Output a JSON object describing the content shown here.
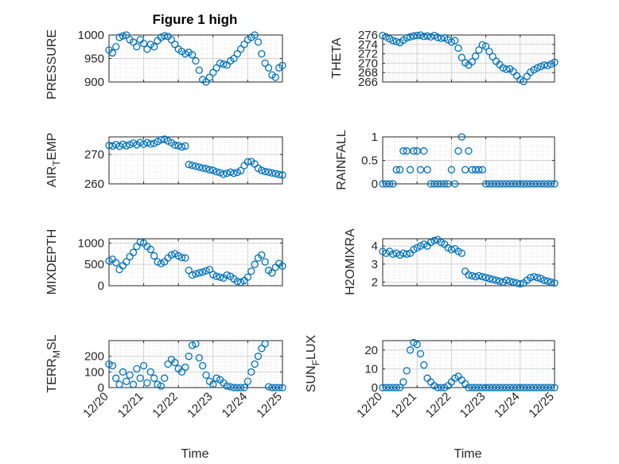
{
  "figure_title": "Figure 1 high",
  "chart_data": [
    {
      "type": "scatter",
      "title": "Figure 1 high",
      "ylabel": "PRESSURE",
      "ylim": [
        900,
        1000
      ],
      "yticks": [
        900,
        950,
        1000
      ],
      "xlim": [
        0,
        5
      ],
      "grid": true,
      "x": [
        0.0,
        0.1,
        0.2,
        0.3,
        0.4,
        0.5,
        0.6,
        0.7,
        0.8,
        0.9,
        1.0,
        1.1,
        1.2,
        1.3,
        1.4,
        1.5,
        1.6,
        1.7,
        1.8,
        1.9,
        2.0,
        2.1,
        2.2,
        2.3,
        2.4,
        2.5,
        2.6,
        2.7,
        2.8,
        2.9,
        3.0,
        3.1,
        3.2,
        3.3,
        3.4,
        3.5,
        3.6,
        3.7,
        3.8,
        3.9,
        4.0,
        4.1,
        4.2,
        4.3,
        4.4,
        4.5,
        4.6,
        4.7,
        4.8,
        4.9,
        5.0
      ],
      "y": [
        968,
        962,
        975,
        995,
        998,
        1000,
        990,
        985,
        975,
        990,
        982,
        970,
        980,
        975,
        988,
        995,
        998,
        997,
        990,
        980,
        970,
        965,
        960,
        963,
        958,
        945,
        925,
        905,
        900,
        910,
        920,
        930,
        940,
        938,
        936,
        945,
        950,
        960,
        970,
        980,
        990,
        995,
        1000,
        985,
        960,
        940,
        930,
        915,
        910,
        930,
        935
      ]
    },
    {
      "type": "scatter",
      "ylabel": "THETA",
      "ylim": [
        266,
        276
      ],
      "yticks": [
        266,
        268,
        270,
        272,
        274,
        276
      ],
      "xlim": [
        0,
        5
      ],
      "grid": true,
      "x": [
        0.0,
        0.1,
        0.2,
        0.3,
        0.4,
        0.5,
        0.6,
        0.7,
        0.8,
        0.9,
        1.0,
        1.1,
        1.2,
        1.3,
        1.4,
        1.5,
        1.6,
        1.7,
        1.8,
        1.9,
        2.0,
        2.1,
        2.2,
        2.3,
        2.4,
        2.5,
        2.6,
        2.7,
        2.8,
        2.9,
        3.0,
        3.1,
        3.2,
        3.3,
        3.4,
        3.5,
        3.6,
        3.7,
        3.8,
        3.9,
        4.0,
        4.1,
        4.2,
        4.3,
        4.4,
        4.5,
        4.6,
        4.7,
        4.8,
        4.9,
        5.0
      ],
      "y": [
        275.9,
        275.6,
        275.2,
        274.8,
        274.6,
        274.4,
        274.9,
        275.4,
        275.6,
        275.8,
        275.9,
        276.0,
        275.7,
        275.8,
        275.6,
        275.9,
        275.5,
        275.3,
        275.4,
        275.0,
        274.5,
        274.8,
        273.2,
        271.2,
        270.1,
        269.6,
        270.3,
        271.5,
        272.8,
        273.9,
        273.6,
        272.5,
        271.4,
        270.4,
        269.7,
        269.0,
        268.7,
        268.8,
        268.2,
        267.3,
        266.5,
        266.1,
        267.2,
        268.1,
        268.6,
        269.0,
        269.3,
        269.6,
        269.5,
        269.8,
        270.2
      ]
    },
    {
      "type": "scatter",
      "ylabel": "AIR_TEMP",
      "ylim": [
        260,
        276
      ],
      "yticks": [
        260,
        270
      ],
      "xlim": [
        0,
        5
      ],
      "grid": true,
      "x": [
        0.0,
        0.1,
        0.2,
        0.3,
        0.4,
        0.5,
        0.6,
        0.7,
        0.8,
        0.9,
        1.0,
        1.1,
        1.2,
        1.3,
        1.4,
        1.5,
        1.6,
        1.7,
        1.8,
        1.9,
        2.0,
        2.1,
        2.2,
        2.3,
        2.4,
        2.5,
        2.6,
        2.7,
        2.8,
        2.9,
        3.0,
        3.1,
        3.2,
        3.3,
        3.4,
        3.5,
        3.6,
        3.7,
        3.8,
        3.9,
        4.0,
        4.1,
        4.2,
        4.3,
        4.4,
        4.5,
        4.6,
        4.7,
        4.8,
        4.9,
        5.0
      ],
      "y": [
        273.1,
        272.9,
        273.4,
        272.8,
        273.5,
        273.0,
        273.4,
        273.9,
        273.3,
        274.1,
        273.5,
        274.0,
        273.6,
        273.8,
        274.4,
        275.0,
        275.2,
        274.6,
        274.0,
        273.2,
        273.0,
        272.6,
        272.9,
        266.6,
        266.3,
        266.0,
        265.7,
        265.4,
        265.2,
        264.8,
        264.6,
        264.1,
        263.8,
        263.3,
        263.6,
        264.0,
        263.6,
        263.9,
        264.5,
        266.2,
        267.5,
        267.6,
        266.8,
        265.3,
        264.6,
        264.2,
        264.0,
        263.7,
        263.5,
        263.2,
        263.0
      ]
    },
    {
      "type": "scatter",
      "ylabel": "RAINFALL",
      "ylim": [
        0,
        1
      ],
      "yticks": [
        0,
        0.5,
        1
      ],
      "xlim": [
        0,
        5
      ],
      "grid": true,
      "x": [
        0.0,
        0.1,
        0.2,
        0.3,
        0.4,
        0.5,
        0.6,
        0.7,
        0.8,
        0.9,
        1.0,
        1.1,
        1.2,
        1.3,
        1.4,
        1.5,
        1.6,
        1.7,
        1.8,
        1.9,
        2.0,
        2.1,
        2.2,
        2.3,
        2.4,
        2.5,
        2.6,
        2.7,
        2.8,
        2.9,
        3.0,
        3.1,
        3.2,
        3.3,
        3.4,
        3.5,
        3.6,
        3.7,
        3.8,
        3.9,
        4.0,
        4.1,
        4.2,
        4.3,
        4.4,
        4.5,
        4.6,
        4.7,
        4.8,
        4.9,
        5.0
      ],
      "y": [
        0,
        0,
        0,
        0,
        0.3,
        0.3,
        0.7,
        0.7,
        0.3,
        0.7,
        0.7,
        0.3,
        0.7,
        0.3,
        0,
        0,
        0,
        0,
        0,
        0,
        0.3,
        0,
        0.7,
        1.0,
        0.3,
        0.7,
        0.3,
        0.3,
        0.3,
        0.3,
        0,
        0,
        0,
        0,
        0,
        0,
        0,
        0,
        0,
        0,
        0,
        0,
        0,
        0,
        0,
        0,
        0,
        0,
        0,
        0,
        0
      ]
    },
    {
      "type": "scatter",
      "ylabel": "MIXDEPTH",
      "ylim": [
        0,
        1100
      ],
      "yticks": [
        0,
        500,
        1000
      ],
      "xlim": [
        0,
        5
      ],
      "grid": true,
      "x": [
        0.0,
        0.1,
        0.2,
        0.3,
        0.4,
        0.5,
        0.6,
        0.7,
        0.8,
        0.9,
        1.0,
        1.1,
        1.2,
        1.3,
        1.4,
        1.5,
        1.6,
        1.7,
        1.8,
        1.9,
        2.0,
        2.1,
        2.2,
        2.3,
        2.4,
        2.5,
        2.6,
        2.7,
        2.8,
        2.9,
        3.0,
        3.1,
        3.2,
        3.3,
        3.4,
        3.5,
        3.6,
        3.7,
        3.8,
        3.9,
        4.0,
        4.1,
        4.2,
        4.3,
        4.4,
        4.5,
        4.6,
        4.7,
        4.8,
        4.9,
        5.0
      ],
      "y": [
        580,
        620,
        540,
        380,
        470,
        560,
        680,
        780,
        920,
        1020,
        1000,
        920,
        850,
        700,
        560,
        520,
        560,
        650,
        720,
        750,
        700,
        660,
        650,
        360,
        250,
        280,
        300,
        320,
        350,
        380,
        260,
        220,
        200,
        180,
        250,
        220,
        160,
        100,
        80,
        120,
        200,
        340,
        500,
        650,
        720,
        560,
        360,
        300,
        430,
        520,
        460
      ]
    },
    {
      "type": "scatter",
      "ylabel": "H2OMIXRA",
      "ylim": [
        1.8,
        4.4
      ],
      "yticks": [
        2,
        3,
        4
      ],
      "xlim": [
        0,
        5
      ],
      "grid": true,
      "x": [
        0.0,
        0.1,
        0.2,
        0.3,
        0.4,
        0.5,
        0.6,
        0.7,
        0.8,
        0.9,
        1.0,
        1.1,
        1.2,
        1.3,
        1.4,
        1.5,
        1.6,
        1.7,
        1.8,
        1.9,
        2.0,
        2.1,
        2.2,
        2.3,
        2.4,
        2.5,
        2.6,
        2.7,
        2.8,
        2.9,
        3.0,
        3.1,
        3.2,
        3.3,
        3.4,
        3.5,
        3.6,
        3.7,
        3.8,
        3.9,
        4.0,
        4.1,
        4.2,
        4.3,
        4.4,
        4.5,
        4.6,
        4.7,
        4.8,
        4.9,
        5.0
      ],
      "y": [
        3.7,
        3.6,
        3.7,
        3.55,
        3.6,
        3.5,
        3.6,
        3.55,
        3.6,
        3.8,
        3.9,
        4.0,
        4.1,
        4.0,
        4.2,
        4.3,
        4.35,
        4.2,
        4.1,
        3.9,
        3.8,
        3.85,
        3.7,
        3.6,
        2.6,
        2.4,
        2.35,
        2.3,
        2.35,
        2.3,
        2.25,
        2.2,
        2.15,
        2.1,
        2.05,
        2.0,
        2.1,
        2.05,
        2.0,
        1.95,
        1.9,
        1.95,
        2.1,
        2.25,
        2.3,
        2.25,
        2.2,
        2.1,
        2.05,
        2.0,
        1.95
      ]
    },
    {
      "type": "scatter",
      "ylabel": "TERR_MSL",
      "ylim": [
        0,
        300
      ],
      "yticks": [
        0,
        100,
        200
      ],
      "xlim": [
        0,
        5
      ],
      "grid": true,
      "x": [
        0.0,
        0.1,
        0.2,
        0.3,
        0.4,
        0.5,
        0.6,
        0.7,
        0.8,
        0.9,
        1.0,
        1.1,
        1.2,
        1.3,
        1.4,
        1.5,
        1.6,
        1.7,
        1.8,
        1.9,
        2.0,
        2.1,
        2.2,
        2.3,
        2.4,
        2.5,
        2.6,
        2.7,
        2.8,
        2.9,
        3.0,
        3.1,
        3.2,
        3.3,
        3.4,
        3.5,
        3.6,
        3.7,
        3.8,
        3.9,
        4.0,
        4.1,
        4.2,
        4.3,
        4.4,
        4.5,
        4.6,
        4.7,
        4.8,
        4.9,
        5.0
      ],
      "y": [
        150,
        140,
        60,
        20,
        100,
        40,
        80,
        20,
        120,
        60,
        140,
        30,
        100,
        60,
        20,
        10,
        60,
        150,
        180,
        160,
        120,
        100,
        130,
        200,
        270,
        280,
        190,
        140,
        80,
        40,
        20,
        60,
        50,
        30,
        10,
        5,
        0,
        0,
        0,
        0,
        40,
        100,
        150,
        200,
        250,
        280,
        5,
        0,
        0,
        0,
        0
      ]
    },
    {
      "type": "scatter",
      "ylabel": "SUN_FLUX",
      "ylim": [
        0,
        25
      ],
      "yticks": [
        0,
        10,
        20
      ],
      "xlim": [
        0,
        5
      ],
      "grid": true,
      "x": [
        0.0,
        0.1,
        0.2,
        0.3,
        0.4,
        0.5,
        0.6,
        0.7,
        0.8,
        0.9,
        1.0,
        1.1,
        1.2,
        1.3,
        1.4,
        1.5,
        1.6,
        1.7,
        1.8,
        1.9,
        2.0,
        2.1,
        2.2,
        2.3,
        2.4,
        2.5,
        2.6,
        2.7,
        2.8,
        2.9,
        3.0,
        3.1,
        3.2,
        3.3,
        3.4,
        3.5,
        3.6,
        3.7,
        3.8,
        3.9,
        4.0,
        4.1,
        4.2,
        4.3,
        4.4,
        4.5,
        4.6,
        4.7,
        4.8,
        4.9,
        5.0
      ],
      "y": [
        0,
        0,
        0,
        0,
        0,
        0,
        3,
        9,
        20,
        24,
        23,
        18,
        12,
        5,
        3,
        1,
        0,
        0,
        0,
        1,
        3,
        5,
        6,
        4,
        2,
        0,
        0,
        0,
        0,
        0,
        0,
        0,
        0,
        0,
        0,
        0,
        0,
        0,
        0,
        0,
        0,
        0,
        0,
        0,
        0,
        0,
        0,
        0,
        0,
        0,
        0
      ]
    }
  ],
  "x_tick_labels": [
    "12/20",
    "12/21",
    "12/22",
    "12/23",
    "12/24",
    "12/25"
  ],
  "x_axis_label": "Time",
  "ylabels": {
    "pressure": "PRESSURE",
    "theta": "THETA",
    "air_temp_main": "AIR",
    "air_temp_sub": "T",
    "air_temp_tail": "EMP",
    "rainfall": "RAINFALL",
    "mixdepth": "MIXDEPTH",
    "h2omixra": "H2OMIXRA",
    "terr_main": "TERR",
    "terr_sub": "M",
    "terr_tail": "SL",
    "sun_main": "SUN",
    "sun_sub": "F",
    "sun_tail": "LUX"
  },
  "colors": {
    "marker": "#0072BD",
    "grid": "#DFDFDF",
    "axis": "#262626",
    "background": "#FFFFFF"
  }
}
